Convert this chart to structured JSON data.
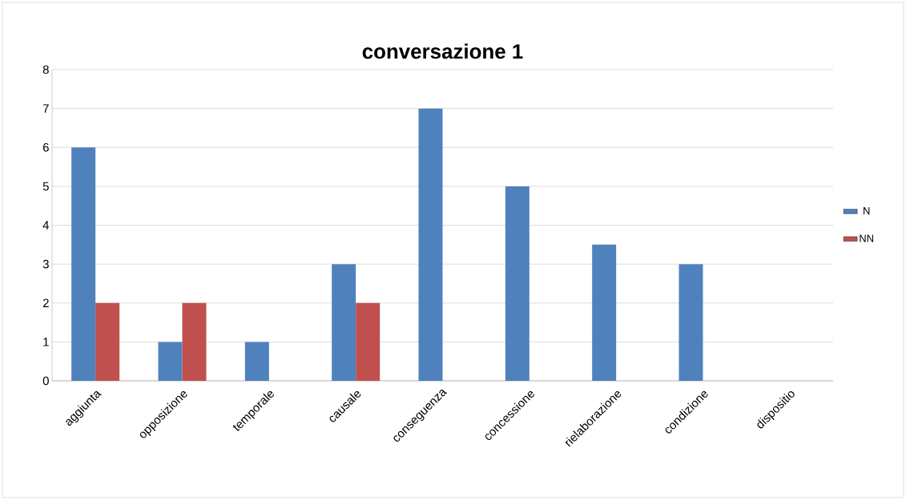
{
  "chart_data": {
    "type": "bar",
    "title": "conversazione 1",
    "categories": [
      "aggiunta",
      "opposizione",
      "temporale",
      "causale",
      "conseguenza",
      "concessione",
      "rielaborazione",
      "condizione",
      "dispositio"
    ],
    "series": [
      {
        "name": "N",
        "color": "#4f81bd",
        "values": [
          6,
          1,
          1,
          3,
          7,
          5,
          3.5,
          3,
          null
        ]
      },
      {
        "name": "NN",
        "color": "#c0504d",
        "values": [
          2,
          2,
          null,
          2,
          null,
          null,
          null,
          null,
          null
        ]
      }
    ],
    "ylim": [
      0,
      8
    ],
    "yticks": [
      0,
      1,
      2,
      3,
      4,
      5,
      6,
      7,
      8
    ],
    "grid": "y",
    "legend": "right"
  }
}
